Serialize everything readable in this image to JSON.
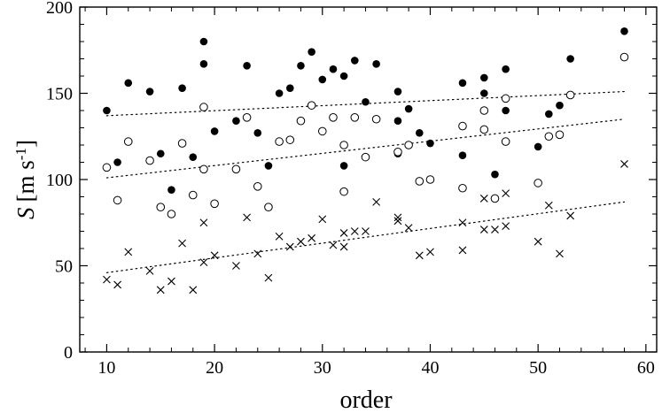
{
  "chart_data": {
    "type": "scatter",
    "xlabel": "order",
    "ylabel": {
      "symbol": "S",
      "unit_prefix": "[m s",
      "unit_exp": "-1",
      "unit_suffix": "]"
    },
    "xlim": [
      7.5,
      61
    ],
    "ylim": [
      0,
      200
    ],
    "x_ticks": [
      10,
      20,
      30,
      40,
      50,
      60
    ],
    "y_ticks": [
      0,
      50,
      100,
      150,
      200
    ],
    "x_minor_step": 2,
    "y_minor_step": 10,
    "grid": false,
    "legend": "none",
    "series": [
      {
        "marker": "filled-circle",
        "points": [
          [
            10,
            140
          ],
          [
            11,
            110
          ],
          [
            12,
            156
          ],
          [
            14,
            151
          ],
          [
            15,
            115
          ],
          [
            16,
            94
          ],
          [
            17,
            153
          ],
          [
            18,
            113
          ],
          [
            19,
            180
          ],
          [
            19,
            167
          ],
          [
            20,
            128
          ],
          [
            22,
            134
          ],
          [
            23,
            166
          ],
          [
            24,
            127
          ],
          [
            25,
            108
          ],
          [
            26,
            150
          ],
          [
            27,
            153
          ],
          [
            28,
            166
          ],
          [
            29,
            174
          ],
          [
            30,
            158
          ],
          [
            31,
            164
          ],
          [
            32,
            160
          ],
          [
            32,
            108
          ],
          [
            33,
            169
          ],
          [
            34,
            145
          ],
          [
            35,
            167
          ],
          [
            37,
            151
          ],
          [
            37,
            134
          ],
          [
            37,
            115
          ],
          [
            38,
            141
          ],
          [
            39,
            127
          ],
          [
            40,
            121
          ],
          [
            43,
            156
          ],
          [
            43,
            114
          ],
          [
            45,
            159
          ],
          [
            45,
            150
          ],
          [
            46,
            103
          ],
          [
            47,
            164
          ],
          [
            47,
            140
          ],
          [
            50,
            119
          ],
          [
            51,
            138
          ],
          [
            52,
            143
          ],
          [
            53,
            170
          ],
          [
            58,
            186
          ]
        ],
        "trend": [
          [
            10,
            137
          ],
          [
            58,
            151
          ]
        ]
      },
      {
        "marker": "open-circle",
        "points": [
          [
            10,
            107
          ],
          [
            11,
            88
          ],
          [
            12,
            122
          ],
          [
            14,
            111
          ],
          [
            15,
            84
          ],
          [
            16,
            80
          ],
          [
            17,
            121
          ],
          [
            18,
            91
          ],
          [
            19,
            142
          ],
          [
            19,
            106
          ],
          [
            20,
            86
          ],
          [
            22,
            106
          ],
          [
            23,
            136
          ],
          [
            24,
            96
          ],
          [
            25,
            84
          ],
          [
            26,
            122
          ],
          [
            27,
            123
          ],
          [
            28,
            134
          ],
          [
            29,
            143
          ],
          [
            30,
            128
          ],
          [
            31,
            136
          ],
          [
            32,
            120
          ],
          [
            32,
            93
          ],
          [
            33,
            136
          ],
          [
            34,
            113
          ],
          [
            35,
            135
          ],
          [
            37,
            116
          ],
          [
            38,
            120
          ],
          [
            39,
            99
          ],
          [
            40,
            100
          ],
          [
            43,
            131
          ],
          [
            43,
            95
          ],
          [
            45,
            140
          ],
          [
            45,
            129
          ],
          [
            46,
            89
          ],
          [
            47,
            147
          ],
          [
            47,
            122
          ],
          [
            50,
            98
          ],
          [
            51,
            125
          ],
          [
            52,
            126
          ],
          [
            53,
            149
          ],
          [
            58,
            171
          ]
        ],
        "trend": [
          [
            10,
            101
          ],
          [
            58,
            135
          ]
        ]
      },
      {
        "marker": "cross",
        "points": [
          [
            10,
            42
          ],
          [
            11,
            39
          ],
          [
            12,
            58
          ],
          [
            14,
            47
          ],
          [
            15,
            36
          ],
          [
            16,
            41
          ],
          [
            17,
            63
          ],
          [
            18,
            36
          ],
          [
            19,
            75
          ],
          [
            19,
            52
          ],
          [
            20,
            56
          ],
          [
            22,
            50
          ],
          [
            23,
            78
          ],
          [
            24,
            57
          ],
          [
            25,
            43
          ],
          [
            26,
            67
          ],
          [
            27,
            61
          ],
          [
            28,
            64
          ],
          [
            29,
            66
          ],
          [
            30,
            77
          ],
          [
            31,
            62
          ],
          [
            32,
            69
          ],
          [
            32,
            61
          ],
          [
            33,
            70
          ],
          [
            34,
            70
          ],
          [
            35,
            87
          ],
          [
            37,
            78
          ],
          [
            37,
            76
          ],
          [
            38,
            72
          ],
          [
            39,
            56
          ],
          [
            40,
            58
          ],
          [
            43,
            75
          ],
          [
            43,
            59
          ],
          [
            45,
            89
          ],
          [
            45,
            71
          ],
          [
            46,
            71
          ],
          [
            47,
            92
          ],
          [
            47,
            73
          ],
          [
            50,
            64
          ],
          [
            51,
            85
          ],
          [
            52,
            57
          ],
          [
            53,
            79
          ],
          [
            58,
            109
          ]
        ],
        "trend": [
          [
            10,
            46
          ],
          [
            58,
            87
          ]
        ]
      }
    ]
  }
}
